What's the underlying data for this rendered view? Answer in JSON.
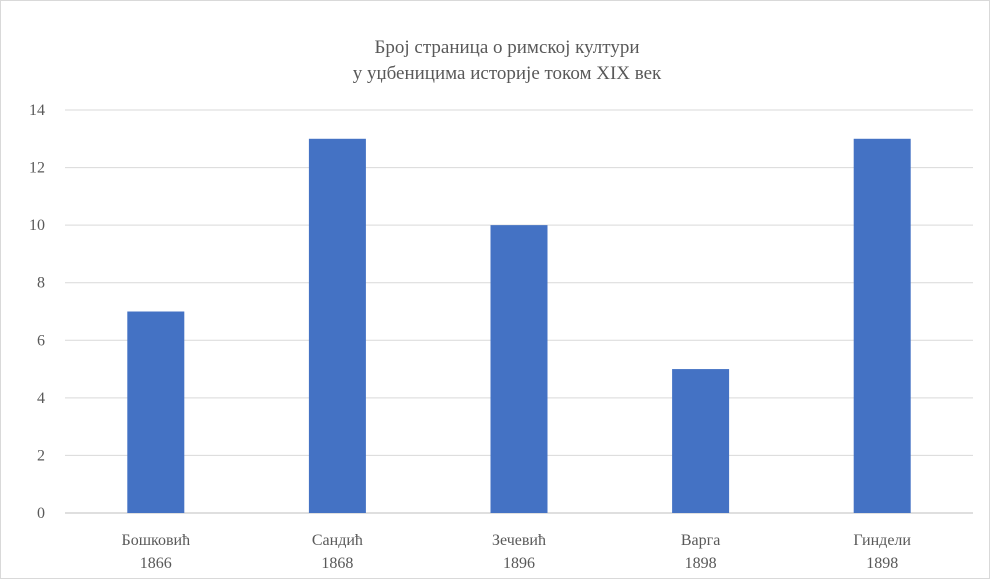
{
  "chart_data": {
    "type": "bar",
    "title_lines": [
      "Број страница о римској култури",
      "у уџбеницима историје током XIX век"
    ],
    "categories": [
      {
        "name": "Бошковић",
        "year": "1866"
      },
      {
        "name": "Сандић",
        "year": "1868"
      },
      {
        "name": "Зечевић",
        "year": "1896"
      },
      {
        "name": "Варга",
        "year": "1898"
      },
      {
        "name": "Гиндели",
        "year": "1898"
      }
    ],
    "values": [
      7,
      13,
      10,
      5,
      13
    ],
    "ylim": [
      0,
      14
    ],
    "yticks": [
      "0",
      "2",
      "4",
      "6",
      "8",
      "10",
      "12",
      "14"
    ],
    "grid": true,
    "legend": "none",
    "colors": {
      "bar": "#4472c4"
    }
  }
}
